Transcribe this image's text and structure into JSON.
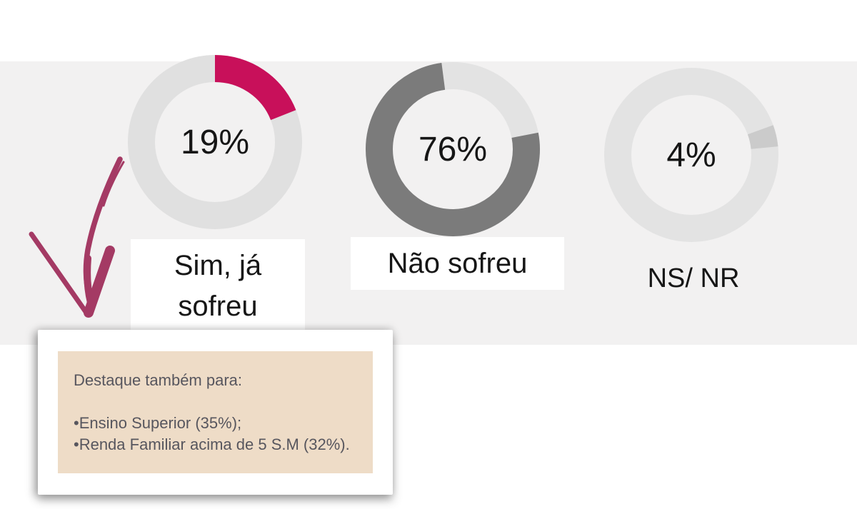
{
  "colors": {
    "accent_pink": "#C8105A",
    "dark_gray": "#7B7B7B",
    "light_track": "#E0E0E0",
    "band": "#F2F1F1",
    "card": "#FFFFFF",
    "note_bg": "#EEDCC7",
    "note_text": "#57565E",
    "arrow": "#A43A64",
    "label_text": "#161616"
  },
  "chart_data": [
    {
      "type": "donut",
      "category": "Sim, já sofreu",
      "center_label": "19%",
      "value_pct": 19,
      "track_color": "#E0E0E0",
      "segments": [
        {
          "name": "Sim, já sofreu",
          "value": 19,
          "color": "#C8105A",
          "start_deg": 0
        }
      ],
      "label_lines": [
        "Sim, já",
        "sofreu"
      ]
    },
    {
      "type": "donut",
      "category": "Não sofreu",
      "center_label": "76%",
      "value_pct": 76,
      "track_color": "#E3E3E3",
      "segments": [
        {
          "name": "Não sofreu",
          "value": 76,
          "color": "#7B7B7B",
          "start_deg": 79
        }
      ],
      "label_lines": [
        "Não sofreu"
      ]
    },
    {
      "type": "donut",
      "category": "NS/ NR",
      "center_label": "4%",
      "value_pct": 4,
      "track_color": "#E3E3E3",
      "segments": [
        {
          "name": "NS/ NR",
          "value": 4,
          "color": "#CBCBCB",
          "start_deg": 70
        }
      ],
      "label_lines": [
        "NS/ NR"
      ]
    }
  ],
  "note": {
    "heading": "Destaque também para:",
    "bullets": [
      "•Ensino Superior (35%);",
      "•Renda Familiar acima de 5 S.M (32%)."
    ]
  }
}
